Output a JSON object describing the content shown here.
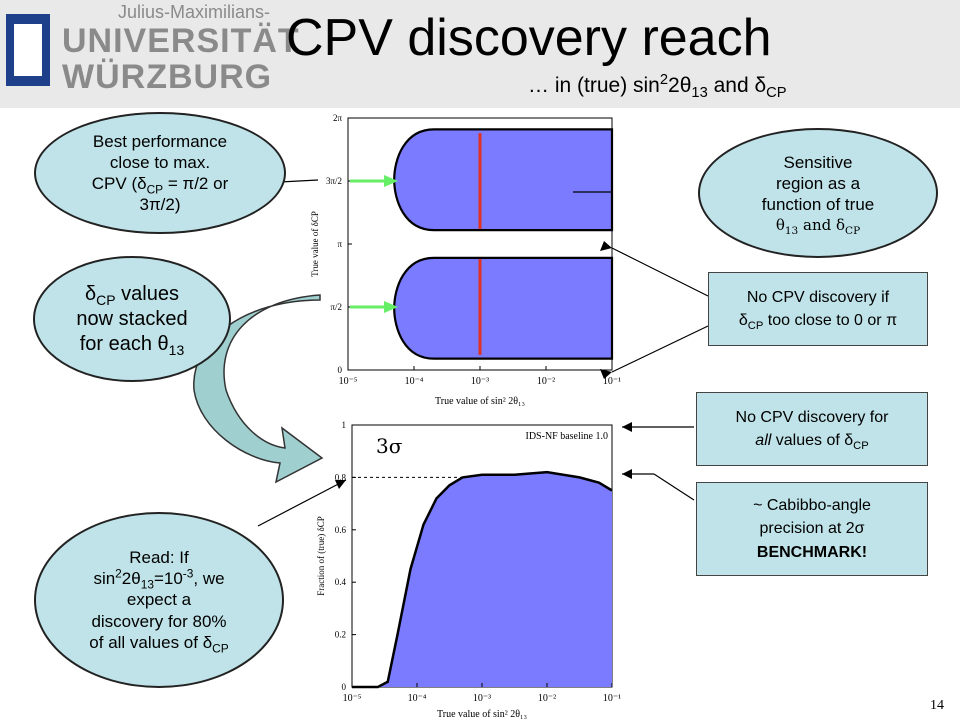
{
  "header": {
    "university_small": "Julius-Maximilians-",
    "university_line1": "UNIVERSITÄT",
    "university_line2": "WÜRZBURG",
    "title": "CPV discovery reach",
    "subtitle_prefix": "… in (true) sin",
    "subtitle_mid": "2θ",
    "subtitle_and": " and δ",
    "subtitle_cp": "CP"
  },
  "callouts": {
    "best_performance": {
      "line1": "Best performance",
      "line2": "close to max.",
      "line3": "CPV (δ",
      "line3_sub": "CP",
      "line3_tail": " = π/2 or",
      "line4": "3π/2)"
    },
    "stacked": {
      "line1": "δ",
      "line1_sub": "CP",
      "line1_tail": " values",
      "line2": "now stacked",
      "line3": "for each θ",
      "line3_sub": "13"
    },
    "sensitive": {
      "line1": "Sensitive",
      "line2": "region as a",
      "line3": "function of true",
      "line4_a": "θ",
      "line4_sub": "13",
      "line4_b": " and δ",
      "line4_sub2": "CP"
    },
    "no_cpv_close": {
      "line1": "No CPV discovery if",
      "line2_a": "δ",
      "line2_sub": "CP",
      "line2_b": " too close to 0 or π"
    },
    "no_cpv_all": {
      "line1": "No CPV discovery for",
      "line2_italic": "all",
      "line2_b": " values of δ",
      "line2_sub": "CP"
    },
    "cabibbo": {
      "line1": "~ Cabibbo-angle",
      "line2": "precision at 2σ",
      "line3": "BENCHMARK!"
    },
    "read": {
      "line1": "Read: If",
      "line2_a": "sin",
      "line2_sup": "2",
      "line2_b": "2θ",
      "line2_sub": "13",
      "line2_c": "=10",
      "line2_sup2": "-3",
      "line2_d": ", we",
      "line3": "expect a",
      "line4": "discovery for 80%",
      "line5_a": "of all values of δ",
      "line5_sub": "CP"
    }
  },
  "page_number": "14",
  "colors": {
    "fill": "#7b7bff",
    "red_line": "#e03020",
    "green_arrow": "#66ee66",
    "bubble": "#bfe3e8"
  },
  "chart_data": [
    {
      "type": "area",
      "xlabel": "True value of sin² 2θ₁₃",
      "ylabel": "True value of δCP",
      "x_scale": "log",
      "xlim": [
        1e-05,
        0.1
      ],
      "x_ticks": [
        "10⁻⁵",
        "10⁻⁴",
        "10⁻³",
        "10⁻²",
        "10⁻¹"
      ],
      "y_ticks": [
        "0",
        "π/2",
        "π",
        "3π/2",
        "2π"
      ],
      "regions": [
        {
          "name": "",
          "y_range": [
            "0.09π",
            "0.9π"
          ],
          "left_edge_log10": [
            -4.3,
            -3.0
          ],
          "x_max": 0.1
        },
        {
          "name": "",
          "y_range": [
            "1.1π",
            "1.91π"
          ],
          "left_edge_log10": [
            -4.3,
            -3.0
          ],
          "x_max": 0.1
        }
      ],
      "marker_x": 0.001
    },
    {
      "type": "area",
      "annotation": "IDS-NF baseline 1.0",
      "label": "3σ",
      "xlabel": "True value of sin² 2θ₁₃",
      "ylabel": "Fraction of (true) δCP",
      "x_scale": "log",
      "xlim": [
        1e-05,
        0.1
      ],
      "ylim": [
        0,
        1
      ],
      "x_ticks": [
        "10⁻⁵",
        "10⁻⁴",
        "10⁻³",
        "10⁻²",
        "10⁻¹"
      ],
      "y_ticks": [
        "0",
        "0.2",
        "0.4",
        "0.6",
        "0.8",
        "1"
      ],
      "series": [
        {
          "name": "",
          "x_log10": [
            -5.0,
            -4.6,
            -4.45,
            -4.3,
            -4.1,
            -3.9,
            -3.7,
            -3.5,
            -3.3,
            -3.0,
            -2.5,
            -2.0,
            -1.5,
            -1.2,
            -1.0
          ],
          "y": [
            0.0,
            0.0,
            0.02,
            0.2,
            0.45,
            0.62,
            0.72,
            0.77,
            0.8,
            0.81,
            0.81,
            0.82,
            0.8,
            0.78,
            0.75
          ]
        }
      ],
      "reference_line_y": 0.8
    }
  ]
}
